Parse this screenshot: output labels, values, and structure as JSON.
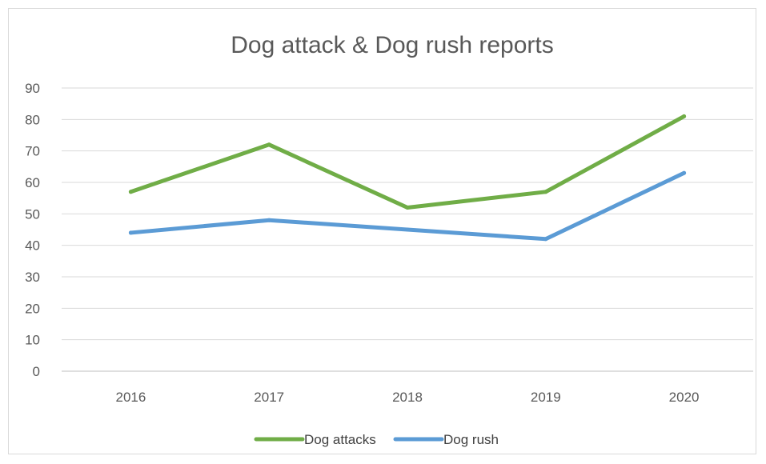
{
  "chart_data": {
    "type": "line",
    "title": "Dog attack & Dog rush reports",
    "categories": [
      "2016",
      "2017",
      "2018",
      "2019",
      "2020"
    ],
    "yticks": [
      "0",
      "10",
      "20",
      "30",
      "40",
      "50",
      "60",
      "70",
      "80",
      "90"
    ],
    "ylim": [
      0,
      90
    ],
    "grid": true,
    "legend_position": "bottom",
    "series": [
      {
        "name": "Dog attacks",
        "values": [
          57,
          72,
          52,
          57,
          81
        ],
        "color": "#70ad47"
      },
      {
        "name": "Dog rush",
        "values": [
          44,
          48,
          45,
          42,
          63
        ],
        "color": "#5b9bd5"
      }
    ]
  }
}
